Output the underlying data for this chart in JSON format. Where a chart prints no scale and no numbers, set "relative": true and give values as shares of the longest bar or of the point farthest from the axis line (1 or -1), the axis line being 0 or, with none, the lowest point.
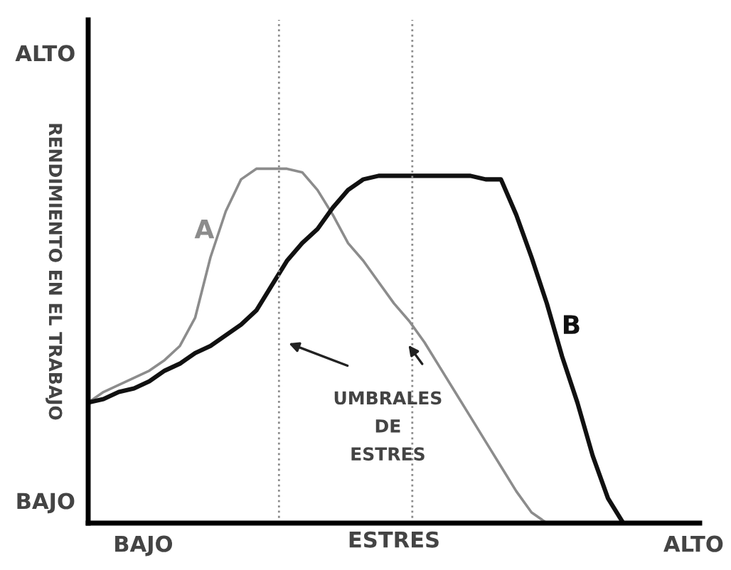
{
  "chart_data": {
    "type": "line",
    "relative": true,
    "xlabel": "ESTRES",
    "ylabel": "RENDIMIENTO EN EL TRABAJO",
    "tick_labels": false,
    "marker": "none",
    "line_style": "solid",
    "categories": [
      null,
      null,
      null,
      null,
      null,
      null,
      null,
      null,
      null,
      null,
      null,
      null,
      null,
      null,
      null,
      null,
      null,
      null,
      null,
      null,
      null,
      null,
      null,
      null,
      null,
      null,
      null,
      null,
      null,
      null,
      null,
      null,
      null,
      null,
      null,
      null,
      null,
      null,
      null,
      null,
      null
    ],
    "series": [
      {
        "name": "A",
        "color": "#8c8c8c",
        "values": [
          0.34,
          0.37,
          0.39,
          0.41,
          0.43,
          0.46,
          0.5,
          0.58,
          0.75,
          0.88,
          0.97,
          1.0,
          1.0,
          1.0,
          0.99,
          0.94,
          0.87,
          0.79,
          0.74,
          0.68,
          0.62,
          0.57,
          0.51,
          0.44,
          0.37,
          0.3,
          0.23,
          0.16,
          0.09,
          0.03,
          0,
          null,
          null,
          null,
          null,
          null,
          null,
          null,
          null,
          null,
          null
        ]
      },
      {
        "name": "B",
        "color": "#111111",
        "values": [
          0.34,
          0.35,
          0.37,
          0.38,
          0.4,
          0.43,
          0.45,
          0.48,
          0.5,
          0.53,
          0.56,
          0.6,
          0.67,
          0.74,
          0.79,
          0.83,
          0.89,
          0.94,
          0.97,
          0.98,
          0.98,
          0.98,
          0.98,
          0.98,
          0.98,
          0.98,
          0.97,
          0.97,
          0.87,
          0.75,
          0.62,
          0.47,
          0.34,
          0.19,
          0.07,
          0,
          null,
          null,
          null,
          null,
          null
        ]
      }
    ],
    "annotations": [
      "BAJO",
      "ALTO",
      "BAJO",
      "ALTO",
      "UMBRALES\nDE\nESTRES"
    ]
  }
}
